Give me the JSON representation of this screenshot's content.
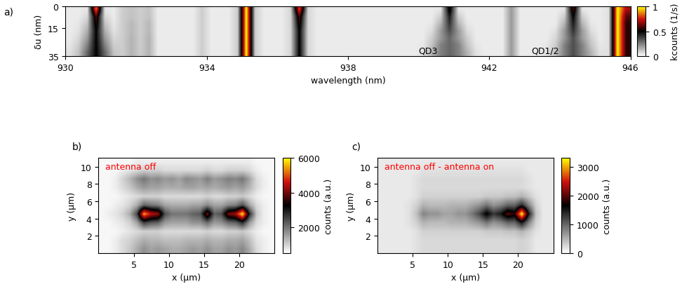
{
  "chart_data": [
    {
      "type": "heatmap",
      "panel": "a)",
      "xlabel": "wavelength (nm)",
      "ylabel": "δu (nm)",
      "xlim": [
        930,
        946
      ],
      "ylim": [
        35,
        0
      ],
      "xticks": [
        930,
        934,
        938,
        942,
        946
      ],
      "yticks": [
        0,
        15,
        35
      ],
      "color_range": [
        0,
        1
      ],
      "color_ticks": [
        0,
        0.5,
        1
      ],
      "colorbar_label": "kcounts (1/s)",
      "annotations": [
        {
          "text": "QD3",
          "x": 940.0,
          "y": 31
        },
        {
          "text": "QD1/2",
          "x": 943.2,
          "y": 31
        }
      ],
      "cells": [
        [
          0.04,
          0.04,
          0.05,
          0.85,
          0.05,
          0.04,
          0.1,
          0.12,
          0.1,
          0.12,
          0.04,
          0.04,
          0.04,
          0.04,
          0.04,
          0.1,
          0.04,
          0.04,
          0.04,
          0.1,
          1,
          0.1,
          0.04,
          0.04,
          0.04,
          0.08,
          0.8,
          0.08,
          0.04,
          0.04,
          0.04,
          0.04,
          0.04,
          0.04,
          0.04,
          0.04,
          0.04,
          0.04,
          0.04,
          0.04,
          0.04,
          0.04,
          0.05,
          0.55,
          0.05,
          0.04,
          0.04,
          0.04,
          0.04,
          0.04,
          0.2,
          0.04,
          0.04,
          0.04,
          0.04,
          0.04,
          0.05,
          0.6,
          0.05,
          0.04,
          0.04,
          0.06,
          1,
          0.7
        ],
        [
          0.04,
          0.04,
          0.08,
          0.6,
          0.08,
          0.04,
          0.1,
          0.12,
          0.1,
          0.12,
          0.04,
          0.04,
          0.04,
          0.04,
          0.04,
          0.1,
          0.04,
          0.04,
          0.04,
          0.1,
          1,
          0.1,
          0.04,
          0.04,
          0.04,
          0.08,
          0.6,
          0.08,
          0.04,
          0.04,
          0.04,
          0.04,
          0.04,
          0.04,
          0.04,
          0.04,
          0.04,
          0.04,
          0.04,
          0.04,
          0.04,
          0.04,
          0.1,
          0.45,
          0.1,
          0.04,
          0.04,
          0.04,
          0.04,
          0.04,
          0.2,
          0.04,
          0.04,
          0.04,
          0.04,
          0.04,
          0.1,
          0.5,
          0.1,
          0.04,
          0.04,
          0.06,
          1,
          0.6
        ],
        [
          0.04,
          0.05,
          0.12,
          0.55,
          0.12,
          0.05,
          0.1,
          0.14,
          0.1,
          0.14,
          0.04,
          0.04,
          0.04,
          0.04,
          0.04,
          0.1,
          0.04,
          0.04,
          0.04,
          0.1,
          1,
          0.1,
          0.04,
          0.04,
          0.04,
          0.08,
          0.55,
          0.08,
          0.04,
          0.04,
          0.04,
          0.04,
          0.04,
          0.04,
          0.04,
          0.04,
          0.04,
          0.04,
          0.04,
          0.04,
          0.04,
          0.05,
          0.15,
          0.4,
          0.15,
          0.05,
          0.04,
          0.04,
          0.04,
          0.04,
          0.2,
          0.04,
          0.04,
          0.04,
          0.04,
          0.04,
          0.15,
          0.45,
          0.15,
          0.05,
          0.04,
          0.06,
          1,
          0.55
        ],
        [
          0.04,
          0.06,
          0.16,
          0.5,
          0.16,
          0.06,
          0.1,
          0.14,
          0.1,
          0.14,
          0.04,
          0.04,
          0.04,
          0.04,
          0.04,
          0.1,
          0.04,
          0.04,
          0.04,
          0.1,
          1,
          0.1,
          0.04,
          0.04,
          0.04,
          0.08,
          0.5,
          0.08,
          0.04,
          0.04,
          0.04,
          0.04,
          0.04,
          0.04,
          0.04,
          0.04,
          0.04,
          0.04,
          0.04,
          0.04,
          0.04,
          0.07,
          0.2,
          0.35,
          0.2,
          0.07,
          0.04,
          0.04,
          0.04,
          0.04,
          0.2,
          0.04,
          0.04,
          0.04,
          0.04,
          0.06,
          0.2,
          0.4,
          0.2,
          0.07,
          0.04,
          0.06,
          1,
          0.55
        ],
        [
          0.04,
          0.08,
          0.2,
          0.5,
          0.2,
          0.08,
          0.1,
          0.15,
          0.1,
          0.15,
          0.04,
          0.04,
          0.04,
          0.04,
          0.04,
          0.1,
          0.04,
          0.04,
          0.04,
          0.1,
          1,
          0.1,
          0.04,
          0.04,
          0.04,
          0.08,
          0.5,
          0.08,
          0.04,
          0.04,
          0.04,
          0.04,
          0.04,
          0.04,
          0.04,
          0.04,
          0.04,
          0.04,
          0.04,
          0.04,
          0.04,
          0.1,
          0.2,
          0.3,
          0.2,
          0.1,
          0.04,
          0.04,
          0.04,
          0.04,
          0.2,
          0.04,
          0.04,
          0.04,
          0.04,
          0.08,
          0.2,
          0.35,
          0.2,
          0.1,
          0.04,
          0.06,
          1,
          0.55
        ],
        [
          0.05,
          0.1,
          0.25,
          0.5,
          0.25,
          0.1,
          0.1,
          0.15,
          0.1,
          0.15,
          0.04,
          0.04,
          0.04,
          0.04,
          0.04,
          0.1,
          0.04,
          0.04,
          0.04,
          0.1,
          1,
          0.1,
          0.04,
          0.04,
          0.04,
          0.08,
          0.5,
          0.08,
          0.04,
          0.04,
          0.04,
          0.04,
          0.04,
          0.04,
          0.04,
          0.04,
          0.04,
          0.04,
          0.04,
          0.04,
          0.05,
          0.12,
          0.25,
          0.3,
          0.25,
          0.12,
          0.05,
          0.04,
          0.04,
          0.04,
          0.2,
          0.04,
          0.04,
          0.04,
          0.05,
          0.1,
          0.25,
          0.35,
          0.25,
          0.12,
          0.05,
          0.06,
          1,
          0.55
        ],
        [
          0.06,
          0.12,
          0.3,
          0.5,
          0.3,
          0.12,
          0.1,
          0.15,
          0.1,
          0.15,
          0.04,
          0.04,
          0.04,
          0.04,
          0.04,
          0.1,
          0.04,
          0.04,
          0.04,
          0.1,
          1,
          0.1,
          0.04,
          0.04,
          0.04,
          0.08,
          0.5,
          0.08,
          0.04,
          0.04,
          0.04,
          0.04,
          0.04,
          0.04,
          0.04,
          0.04,
          0.04,
          0.04,
          0.04,
          0.04,
          0.06,
          0.15,
          0.25,
          0.3,
          0.25,
          0.15,
          0.06,
          0.04,
          0.04,
          0.04,
          0.2,
          0.04,
          0.04,
          0.04,
          0.06,
          0.12,
          0.25,
          0.35,
          0.25,
          0.15,
          0.06,
          0.06,
          1,
          0.55
        ]
      ]
    },
    {
      "type": "heatmap",
      "panel": "b)",
      "xlabel": "x (μm)",
      "ylabel": "y (μm)",
      "xlim": [
        0,
        25
      ],
      "ylim": [
        0,
        11
      ],
      "xticks": [
        5,
        10,
        15,
        20
      ],
      "yticks": [
        2,
        4,
        6,
        8,
        10
      ],
      "color_range": [
        500,
        6000
      ],
      "color_ticks": [
        2000,
        4000,
        6000
      ],
      "colorbar_label": "counts (a.u.)",
      "annotations": [
        {
          "text": "antenna off",
          "x": 1.0,
          "y": 10.0
        }
      ],
      "cells": [
        [
          600,
          600,
          700,
          900,
          1100,
          1400,
          1700,
          1500,
          1600,
          1500,
          1400,
          1400,
          1500,
          1600,
          1500,
          1700,
          1500,
          1500,
          1700,
          1600,
          1800,
          1400,
          900,
          700,
          600
        ],
        [
          600,
          600,
          700,
          900,
          1000,
          1200,
          1400,
          1300,
          1300,
          1200,
          1200,
          1200,
          1300,
          1300,
          1300,
          1400,
          1300,
          1300,
          1400,
          1400,
          1500,
          1200,
          800,
          700,
          600
        ],
        [
          600,
          600,
          600,
          700,
          800,
          900,
          1000,
          1000,
          1000,
          900,
          900,
          900,
          900,
          900,
          900,
          1000,
          900,
          900,
          1000,
          1000,
          1100,
          900,
          700,
          600,
          600
        ],
        [
          600,
          600,
          700,
          800,
          1000,
          1500,
          2600,
          2300,
          2200,
          1600,
          1500,
          1500,
          1500,
          1700,
          1700,
          2100,
          1600,
          1700,
          2100,
          2200,
          2800,
          1600,
          900,
          700,
          600
        ],
        [
          600,
          700,
          800,
          1000,
          1400,
          2500,
          5500,
          4500,
          4200,
          2400,
          2000,
          2000,
          2000,
          2200,
          2300,
          4000,
          2200,
          2400,
          4000,
          4300,
          5900,
          2800,
          1100,
          700,
          600
        ],
        [
          600,
          600,
          700,
          800,
          1000,
          1400,
          2200,
          2000,
          1900,
          1500,
          1400,
          1400,
          1400,
          1500,
          1500,
          1800,
          1500,
          1500,
          1800,
          1900,
          2400,
          1500,
          900,
          700,
          600
        ],
        [
          600,
          600,
          600,
          700,
          800,
          900,
          1000,
          1000,
          1000,
          900,
          900,
          900,
          900,
          900,
          900,
          1000,
          900,
          900,
          1000,
          1000,
          1100,
          900,
          700,
          600,
          600
        ],
        [
          600,
          600,
          700,
          900,
          1100,
          1400,
          1600,
          1500,
          1500,
          1400,
          1400,
          1400,
          1500,
          1500,
          1400,
          1500,
          1400,
          1500,
          1600,
          1500,
          1600,
          1300,
          900,
          700,
          600
        ],
        [
          600,
          600,
          700,
          1000,
          1300,
          1700,
          2000,
          1700,
          1800,
          1600,
          1700,
          1500,
          1800,
          1700,
          1600,
          1900,
          1600,
          1700,
          1900,
          1800,
          2000,
          1500,
          900,
          700,
          600
        ],
        [
          600,
          600,
          600,
          700,
          800,
          900,
          1000,
          1000,
          1000,
          900,
          900,
          900,
          900,
          900,
          900,
          1000,
          900,
          900,
          1000,
          1000,
          1000,
          900,
          700,
          600,
          600
        ],
        [
          600,
          600,
          600,
          600,
          600,
          700,
          700,
          700,
          700,
          700,
          700,
          700,
          700,
          700,
          700,
          700,
          700,
          700,
          700,
          700,
          700,
          700,
          600,
          600,
          600
        ]
      ]
    },
    {
      "type": "heatmap",
      "panel": "c)",
      "xlabel": "x (μm)",
      "ylabel": "y (μm)",
      "xlim": [
        0,
        25
      ],
      "ylim": [
        0,
        11
      ],
      "xticks": [
        5,
        10,
        15,
        20
      ],
      "yticks": [
        2,
        4,
        6,
        8,
        10
      ],
      "color_range": [
        0,
        3300
      ],
      "color_ticks": [
        0,
        1000,
        2000,
        3000
      ],
      "colorbar_label": "counts (a.u.)",
      "annotations": [
        {
          "text": "antenna off - antenna on",
          "x": 1.0,
          "y": 10.0
        }
      ],
      "cells": [
        [
          150,
          150,
          150,
          150,
          150,
          200,
          250,
          250,
          250,
          250,
          250,
          250,
          250,
          250,
          250,
          250,
          250,
          250,
          250,
          250,
          300,
          250,
          150,
          150,
          150
        ],
        [
          150,
          150,
          150,
          150,
          150,
          200,
          250,
          250,
          250,
          250,
          250,
          250,
          250,
          250,
          250,
          250,
          250,
          250,
          250,
          250,
          300,
          250,
          150,
          150,
          150
        ],
        [
          150,
          150,
          150,
          150,
          150,
          200,
          300,
          300,
          300,
          300,
          300,
          300,
          300,
          300,
          300,
          350,
          350,
          350,
          400,
          400,
          500,
          350,
          200,
          150,
          150
        ],
        [
          150,
          150,
          150,
          150,
          200,
          300,
          500,
          450,
          450,
          450,
          500,
          500,
          500,
          600,
          700,
          900,
          700,
          800,
          1000,
          1000,
          1500,
          800,
          300,
          150,
          150
        ],
        [
          150,
          150,
          150,
          150,
          200,
          400,
          800,
          700,
          700,
          600,
          600,
          700,
          700,
          900,
          1200,
          1700,
          1300,
          1500,
          2000,
          1800,
          3300,
          1500,
          400,
          150,
          150
        ],
        [
          150,
          150,
          150,
          150,
          200,
          300,
          500,
          450,
          450,
          450,
          500,
          500,
          500,
          600,
          700,
          900,
          700,
          800,
          1000,
          1000,
          1400,
          800,
          300,
          150,
          150
        ],
        [
          150,
          150,
          150,
          150,
          150,
          200,
          300,
          300,
          300,
          300,
          300,
          300,
          300,
          300,
          300,
          350,
          350,
          350,
          400,
          400,
          500,
          350,
          200,
          150,
          150
        ],
        [
          150,
          150,
          150,
          150,
          150,
          200,
          250,
          250,
          250,
          250,
          250,
          250,
          250,
          250,
          250,
          250,
          250,
          250,
          250,
          250,
          250,
          200,
          150,
          150,
          150
        ],
        [
          150,
          150,
          150,
          150,
          150,
          200,
          250,
          250,
          250,
          250,
          250,
          250,
          250,
          250,
          250,
          250,
          250,
          250,
          250,
          250,
          250,
          200,
          150,
          150,
          150
        ],
        [
          150,
          150,
          150,
          150,
          150,
          150,
          200,
          200,
          200,
          200,
          200,
          200,
          200,
          200,
          200,
          200,
          200,
          200,
          200,
          200,
          200,
          150,
          150,
          150,
          150
        ],
        [
          150,
          150,
          150,
          150,
          150,
          150,
          150,
          150,
          150,
          150,
          150,
          150,
          150,
          150,
          150,
          150,
          150,
          150,
          150,
          150,
          150,
          150,
          150,
          150,
          150
        ]
      ]
    }
  ]
}
